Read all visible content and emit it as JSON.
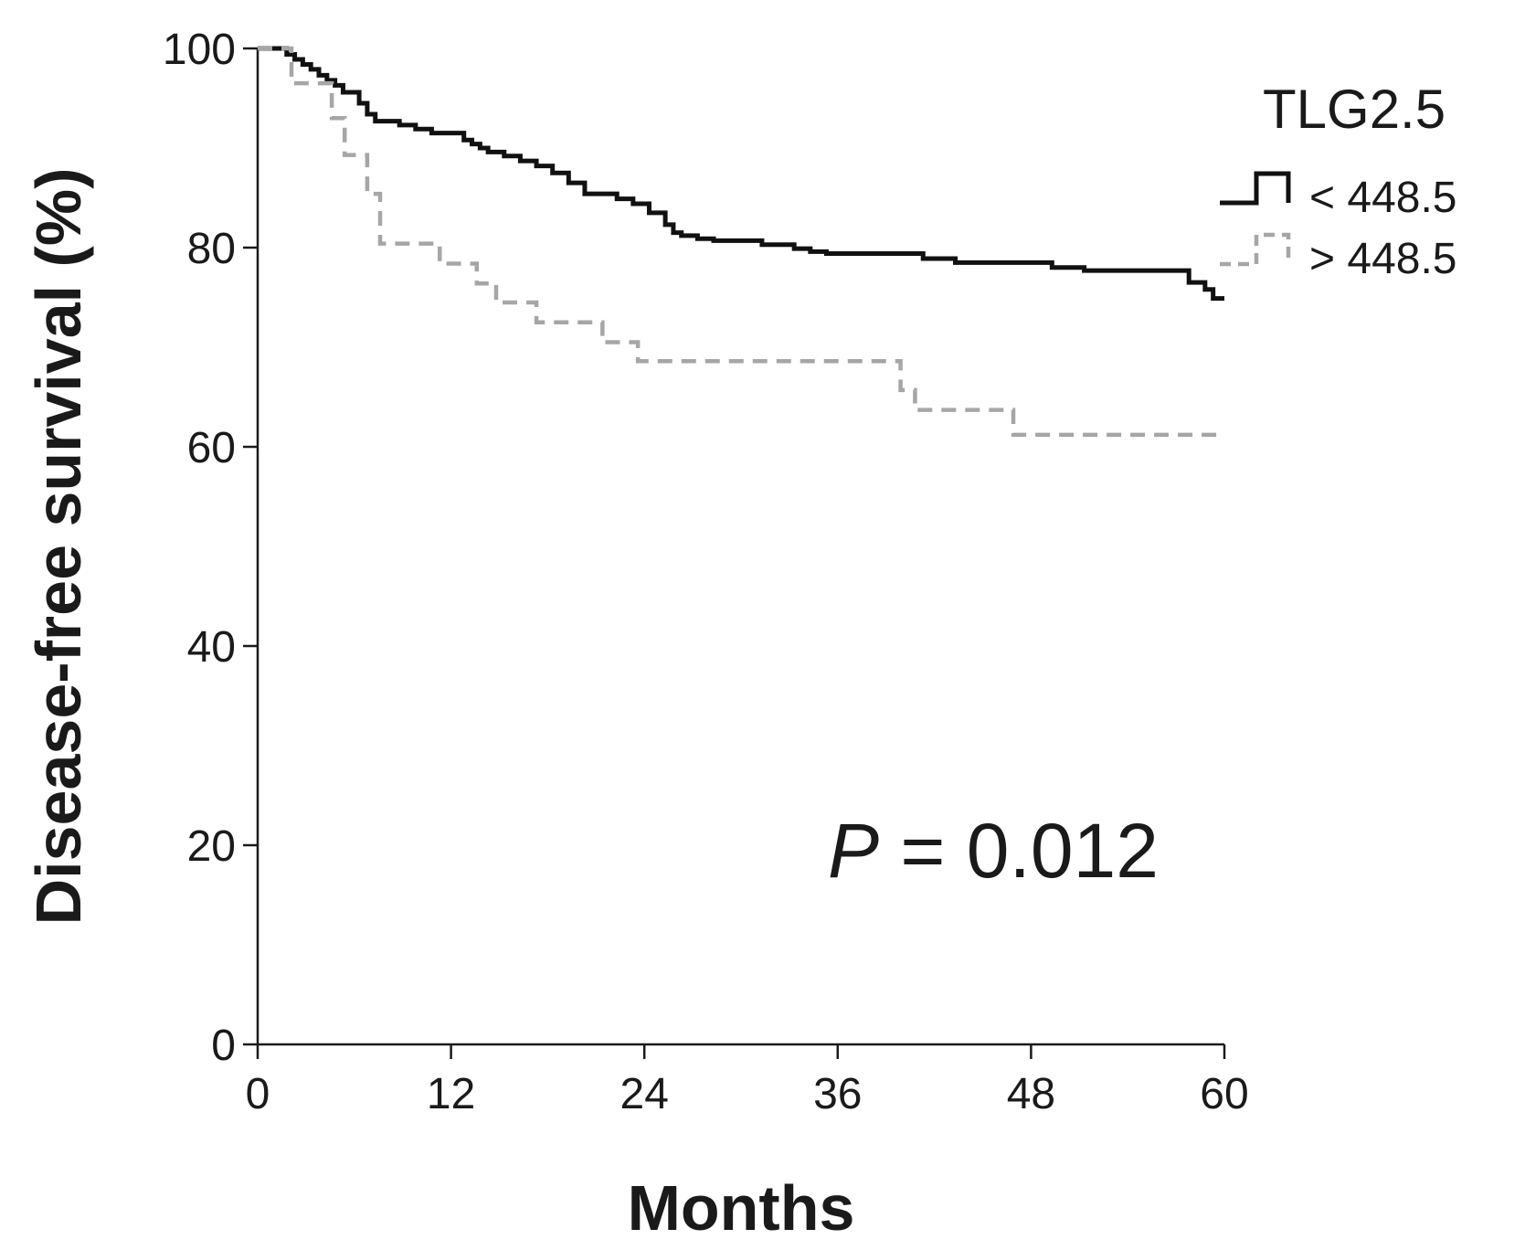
{
  "chart_data": {
    "type": "line",
    "subtype": "kaplan-meier step",
    "xlabel": "Months",
    "ylabel": "Disease-free survival (%)",
    "xlim": [
      0,
      60
    ],
    "ylim": [
      0,
      100
    ],
    "xticks": [
      "0",
      "12",
      "24",
      "36",
      "48",
      "60"
    ],
    "yticks": [
      "0",
      "20",
      "40",
      "60",
      "80",
      "100"
    ],
    "grid": false,
    "legend": {
      "title": "TLG2.5",
      "placement": "top-right"
    },
    "annotation": {
      "italic_part": "P",
      "rest": " = 0.012"
    },
    "series": [
      {
        "name": "< 448.5",
        "color": "#111111",
        "style": "solid",
        "x": [
          0,
          1.8,
          2.3,
          2.8,
          3.3,
          3.8,
          4.3,
          4.8,
          5.3,
          6.3,
          6.8,
          7.3,
          8.8,
          9.8,
          10.8,
          12.8,
          13.3,
          13.8,
          14.3,
          15.3,
          16.3,
          17.3,
          18.3,
          19.3,
          20.3,
          22.3,
          23.3,
          24.3,
          25.3,
          25.8,
          26.3,
          27.3,
          28.3,
          31.3,
          33.3,
          34.3,
          35.3,
          41.3,
          43.3,
          49.3,
          51.3,
          57.8,
          58.8,
          59.3,
          60
        ],
        "y": [
          100,
          99.4,
          98.9,
          98.4,
          97.9,
          97.3,
          96.8,
          96.3,
          95.6,
          94.5,
          93.4,
          92.7,
          92.3,
          91.9,
          91.5,
          90.8,
          90.4,
          90.0,
          89.6,
          89.2,
          88.7,
          88.2,
          87.5,
          86.5,
          85.4,
          84.9,
          84.4,
          83.5,
          82.3,
          81.5,
          81.2,
          80.9,
          80.7,
          80.3,
          79.9,
          79.6,
          79.4,
          78.9,
          78.5,
          78.0,
          77.7,
          76.5,
          75.8,
          74.9,
          74.9
        ]
      },
      {
        "name": "> 448.5",
        "color": "#a6a6a6",
        "style": "dashed",
        "x": [
          0,
          2.1,
          4.6,
          5.4,
          6.8,
          7.6,
          11.3,
          13.6,
          14.8,
          17.3,
          21.4,
          23.6,
          39.9,
          40.8,
          46.9,
          60
        ],
        "y": [
          100,
          96.5,
          93.0,
          89.3,
          85.4,
          80.4,
          78.4,
          76.4,
          74.5,
          72.5,
          70.5,
          68.6,
          65.7,
          63.7,
          61.2,
          61.2
        ]
      }
    ]
  }
}
